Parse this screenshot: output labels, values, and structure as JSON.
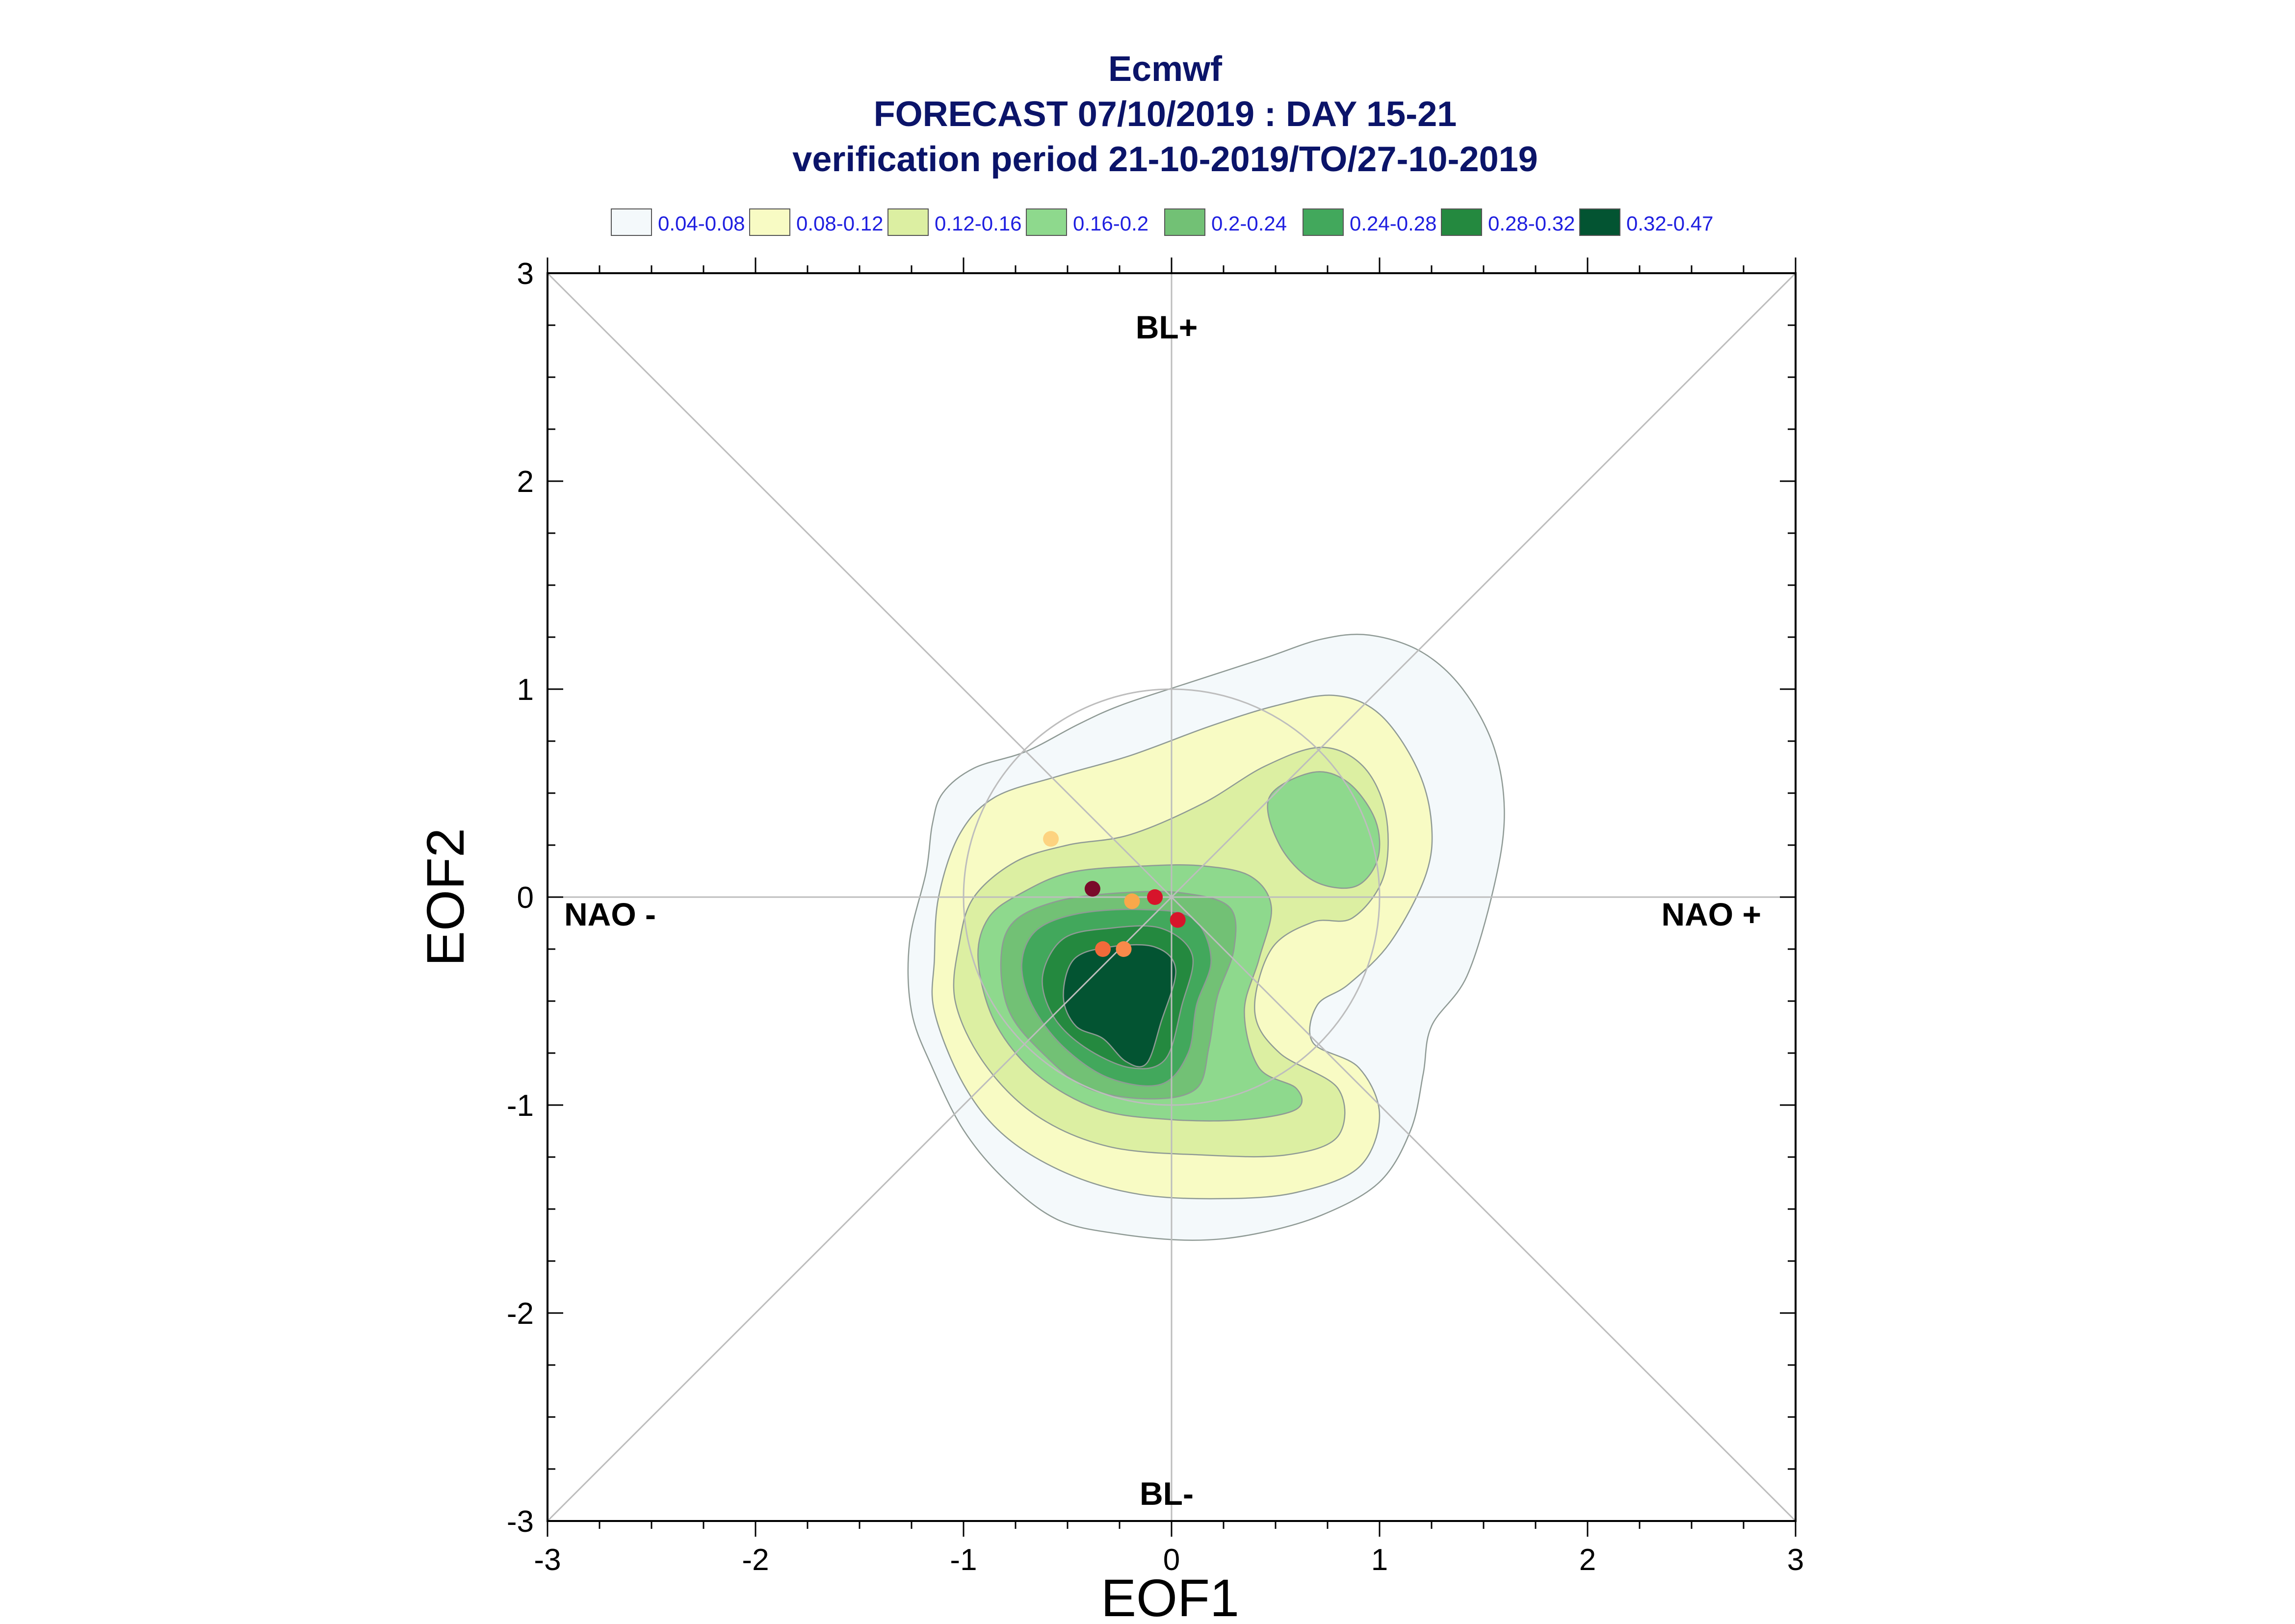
{
  "titles": {
    "line1": "Ecmwf",
    "line2": "FORECAST 07/10/2019 : DAY 15-21",
    "line3": "verification period 21-10-2019/TO/27-10-2019"
  },
  "legend": [
    {
      "label": "0.04-0.08",
      "color": "#f4f9fb"
    },
    {
      "label": "0.08-0.12",
      "color": "#f8fbc4"
    },
    {
      "label": "0.12-0.16",
      "color": "#dcefa2"
    },
    {
      "label": "0.16-0.2",
      "color": "#8ed98d"
    },
    {
      "label": "0.2-0.24",
      "color": "#72c175"
    },
    {
      "label": "0.24-0.28",
      "color": "#42a85c"
    },
    {
      "label": "0.28-0.32",
      "color": "#24893f"
    },
    {
      "label": "0.32-0.47",
      "color": "#035432"
    }
  ],
  "chart_data": {
    "type": "scatter",
    "xlabel": "EOF1",
    "ylabel": "EOF2",
    "xlim": [
      -3,
      3
    ],
    "ylim": [
      -3,
      3
    ],
    "x_ticks": [
      "-3",
      "-2",
      "-1",
      "0",
      "1",
      "2",
      "3"
    ],
    "y_ticks": [
      "-3",
      "-2",
      "-1",
      "0",
      "1",
      "2",
      "3"
    ],
    "regime_labels": {
      "top": "BL+",
      "bottom": "BL-",
      "left": "NAO -",
      "right": "NAO +"
    },
    "reference_lines": [
      "diagonal",
      "anti-diagonal",
      "x=0",
      "y=0",
      "unit circle"
    ],
    "points": [
      {
        "x": -0.58,
        "y": 0.28,
        "color": "#fdd380"
      },
      {
        "x": -0.38,
        "y": 0.04,
        "color": "#7a0a2a"
      },
      {
        "x": -0.19,
        "y": -0.02,
        "color": "#f9a84a"
      },
      {
        "x": -0.08,
        "y": 0.0,
        "color": "#d7142b"
      },
      {
        "x": 0.03,
        "y": -0.11,
        "color": "#d7142b"
      },
      {
        "x": -0.33,
        "y": -0.25,
        "color": "#f26a3a"
      },
      {
        "x": -0.23,
        "y": -0.25,
        "color": "#f9894a"
      }
    ],
    "density_contours": [
      {
        "level": "0.04-0.08",
        "color": "#f4f9fb",
        "polygons": [
          [
            [
              -1.26,
              -0.22
            ],
            [
              -1.18,
              0.12
            ],
            [
              -1.15,
              0.35
            ],
            [
              -1.1,
              0.5
            ],
            [
              -0.95,
              0.62
            ],
            [
              -0.7,
              0.7
            ],
            [
              -0.45,
              0.83
            ],
            [
              -0.25,
              0.92
            ],
            [
              0.05,
              1.02
            ],
            [
              0.45,
              1.15
            ],
            [
              0.72,
              1.24
            ],
            [
              0.95,
              1.26
            ],
            [
              1.2,
              1.18
            ],
            [
              1.4,
              1.0
            ],
            [
              1.55,
              0.72
            ],
            [
              1.6,
              0.4
            ],
            [
              1.55,
              0.05
            ],
            [
              1.42,
              -0.38
            ],
            [
              1.25,
              -0.62
            ],
            [
              1.21,
              -0.85
            ],
            [
              1.15,
              -1.12
            ],
            [
              1.0,
              -1.37
            ],
            [
              0.72,
              -1.53
            ],
            [
              0.4,
              -1.62
            ],
            [
              0.1,
              -1.65
            ],
            [
              -0.25,
              -1.62
            ],
            [
              -0.55,
              -1.55
            ],
            [
              -0.8,
              -1.36
            ],
            [
              -1.0,
              -1.12
            ],
            [
              -1.15,
              -0.82
            ],
            [
              -1.25,
              -0.55
            ]
          ]
        ]
      },
      {
        "level": "0.08-0.12",
        "color": "#f8fbc4",
        "polygons": [
          [
            [
              -1.14,
              -0.55
            ],
            [
              -1.14,
              -0.3
            ],
            [
              -1.12,
              0.0
            ],
            [
              -1.02,
              0.3
            ],
            [
              -0.85,
              0.48
            ],
            [
              -0.55,
              0.58
            ],
            [
              -0.2,
              0.68
            ],
            [
              0.18,
              0.82
            ],
            [
              0.5,
              0.92
            ],
            [
              0.78,
              0.97
            ],
            [
              1.0,
              0.88
            ],
            [
              1.18,
              0.62
            ],
            [
              1.25,
              0.35
            ],
            [
              1.22,
              0.1
            ],
            [
              1.05,
              -0.22
            ],
            [
              0.85,
              -0.42
            ],
            [
              0.7,
              -0.52
            ],
            [
              0.68,
              -0.7
            ],
            [
              0.9,
              -0.82
            ],
            [
              1.0,
              -1.05
            ],
            [
              0.9,
              -1.3
            ],
            [
              0.6,
              -1.42
            ],
            [
              0.25,
              -1.45
            ],
            [
              -0.15,
              -1.43
            ],
            [
              -0.5,
              -1.33
            ],
            [
              -0.8,
              -1.15
            ],
            [
              -1.0,
              -0.9
            ]
          ]
        ]
      },
      {
        "level": "0.12-0.16",
        "color": "#dcefa2",
        "polygons": [
          [
            [
              -1.04,
              -0.5
            ],
            [
              -1.02,
              -0.22
            ],
            [
              -0.95,
              0.0
            ],
            [
              -0.75,
              0.17
            ],
            [
              -0.5,
              0.25
            ],
            [
              -0.2,
              0.3
            ],
            [
              0.15,
              0.45
            ],
            [
              0.45,
              0.63
            ],
            [
              0.72,
              0.72
            ],
            [
              0.92,
              0.63
            ],
            [
              1.03,
              0.4
            ],
            [
              1.02,
              0.1
            ],
            [
              0.87,
              -0.1
            ],
            [
              0.68,
              -0.12
            ],
            [
              0.48,
              -0.25
            ],
            [
              0.4,
              -0.55
            ],
            [
              0.52,
              -0.75
            ],
            [
              0.8,
              -0.92
            ],
            [
              0.8,
              -1.15
            ],
            [
              0.55,
              -1.24
            ],
            [
              0.15,
              -1.24
            ],
            [
              -0.3,
              -1.2
            ],
            [
              -0.65,
              -1.05
            ],
            [
              -0.9,
              -0.8
            ]
          ]
        ]
      },
      {
        "level": "0.16-0.2",
        "color": "#8ed98d",
        "polygons": [
          [
            [
              -0.93,
              -0.3
            ],
            [
              -0.88,
              -0.1
            ],
            [
              -0.72,
              0.02
            ],
            [
              -0.48,
              0.12
            ],
            [
              -0.12,
              0.15
            ],
            [
              0.15,
              0.15
            ],
            [
              0.38,
              0.1
            ],
            [
              0.48,
              -0.05
            ],
            [
              0.42,
              -0.3
            ],
            [
              0.35,
              -0.55
            ],
            [
              0.42,
              -0.82
            ],
            [
              0.6,
              -0.92
            ],
            [
              0.6,
              -1.02
            ],
            [
              0.35,
              -1.07
            ],
            [
              0.0,
              -1.07
            ],
            [
              -0.35,
              -1.02
            ],
            [
              -0.65,
              -0.85
            ],
            [
              -0.85,
              -0.6
            ]
          ],
          [
            [
              0.47,
              0.48
            ],
            [
              0.52,
              0.25
            ],
            [
              0.68,
              0.08
            ],
            [
              0.88,
              0.05
            ],
            [
              0.99,
              0.18
            ],
            [
              0.98,
              0.37
            ],
            [
              0.85,
              0.55
            ],
            [
              0.68,
              0.6
            ]
          ]
        ]
      },
      {
        "level": "0.2-0.24",
        "color": "#72c175",
        "polygons": [
          [
            [
              -0.82,
              -0.3
            ],
            [
              -0.76,
              -0.12
            ],
            [
              -0.55,
              -0.02
            ],
            [
              -0.25,
              0.02
            ],
            [
              0.05,
              0.02
            ],
            [
              0.28,
              -0.05
            ],
            [
              0.3,
              -0.25
            ],
            [
              0.22,
              -0.48
            ],
            [
              0.18,
              -0.72
            ],
            [
              0.12,
              -0.92
            ],
            [
              -0.1,
              -0.97
            ],
            [
              -0.4,
              -0.92
            ],
            [
              -0.62,
              -0.75
            ],
            [
              -0.78,
              -0.55
            ]
          ]
        ]
      },
      {
        "level": "0.24-0.28",
        "color": "#42a85c",
        "polygons": [
          [
            [
              -0.72,
              -0.32
            ],
            [
              -0.65,
              -0.16
            ],
            [
              -0.45,
              -0.08
            ],
            [
              -0.15,
              -0.06
            ],
            [
              0.1,
              -0.1
            ],
            [
              0.19,
              -0.3
            ],
            [
              0.12,
              -0.52
            ],
            [
              0.08,
              -0.75
            ],
            [
              -0.05,
              -0.9
            ],
            [
              -0.3,
              -0.87
            ],
            [
              -0.52,
              -0.72
            ],
            [
              -0.67,
              -0.52
            ]
          ]
        ]
      },
      {
        "level": "0.28-0.32",
        "color": "#24893f",
        "polygons": [
          [
            [
              -0.62,
              -0.38
            ],
            [
              -0.52,
              -0.2
            ],
            [
              -0.3,
              -0.15
            ],
            [
              -0.05,
              -0.15
            ],
            [
              0.1,
              -0.28
            ],
            [
              0.05,
              -0.52
            ],
            [
              -0.03,
              -0.78
            ],
            [
              -0.2,
              -0.82
            ],
            [
              -0.42,
              -0.72
            ],
            [
              -0.57,
              -0.57
            ]
          ]
        ]
      },
      {
        "level": "0.32-0.47",
        "color": "#035432",
        "polygons": [
          [
            [
              -0.52,
              -0.48
            ],
            [
              -0.47,
              -0.3
            ],
            [
              -0.3,
              -0.24
            ],
            [
              -0.08,
              -0.24
            ],
            [
              0.02,
              -0.35
            ],
            [
              -0.05,
              -0.6
            ],
            [
              -0.12,
              -0.8
            ],
            [
              -0.22,
              -0.79
            ],
            [
              -0.33,
              -0.68
            ],
            [
              -0.46,
              -0.62
            ]
          ]
        ]
      }
    ]
  }
}
